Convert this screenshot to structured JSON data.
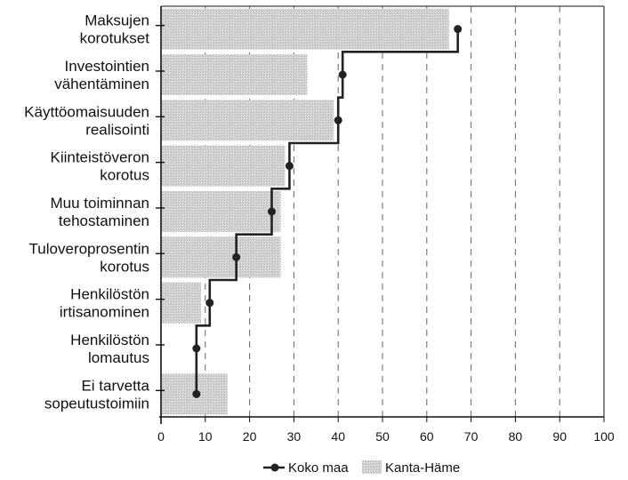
{
  "chart_data": {
    "type": "bar",
    "orientation": "horizontal",
    "categories": [
      [
        "Maksujen",
        "korotukset"
      ],
      [
        "Investointien",
        "vähentäminen"
      ],
      [
        "Käyttöomaisuuden",
        "realisointi"
      ],
      [
        "Kiinteistöveron",
        "korotus"
      ],
      [
        "Muu toiminnan",
        "tehostaminen"
      ],
      [
        "Tuloveroprosentin",
        "korotus"
      ],
      [
        "Henkilöstön",
        "irtisanominen"
      ],
      [
        "Henkilöstön",
        "lomautus"
      ],
      [
        "Ei tarvetta",
        "sopeutustoimiin"
      ]
    ],
    "series": [
      {
        "name": "Kanta-Häme",
        "type": "bar",
        "values": [
          65,
          33,
          39,
          28,
          27,
          27,
          9,
          0,
          15
        ],
        "color": "#c8c8c8"
      },
      {
        "name": "Koko maa",
        "type": "step-line",
        "values": [
          67,
          41,
          40,
          29,
          25,
          17,
          11,
          8,
          8
        ],
        "color": "#222222"
      }
    ],
    "xlim": [
      0,
      100
    ],
    "xticks": [
      "0",
      "10",
      "20",
      "30",
      "40",
      "50",
      "60",
      "70",
      "80",
      "90",
      "100"
    ],
    "grid": "vertical dashed",
    "legend": "bottom",
    "legend_items": [
      {
        "label": "Koko maa",
        "marker": "line-dot"
      },
      {
        "label": "Kanta-Häme",
        "marker": "hatched-box"
      }
    ]
  }
}
